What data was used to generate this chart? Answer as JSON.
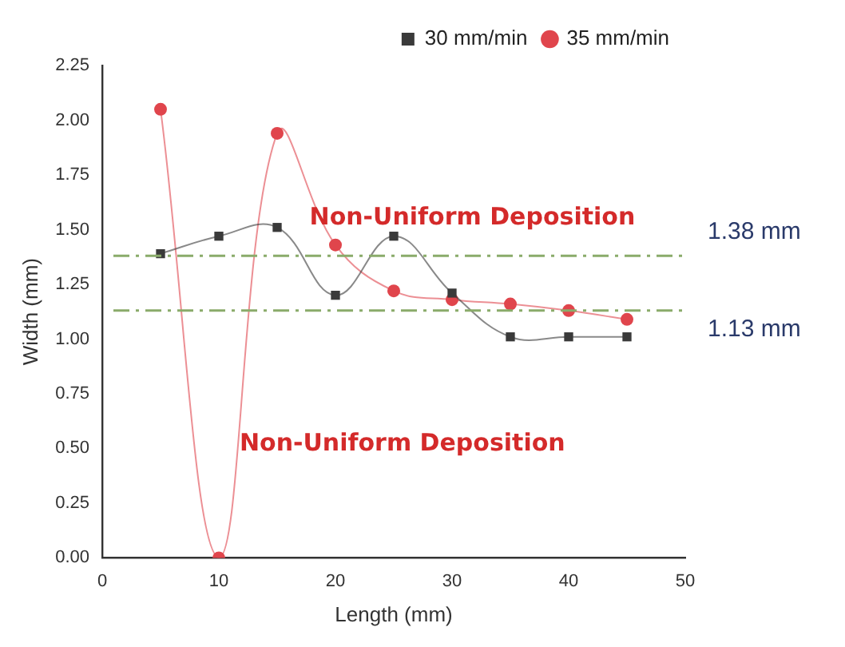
{
  "chart_data": {
    "type": "line",
    "xlabel": "Length (mm)",
    "ylabel": "Width (mm)",
    "x": [
      5,
      10,
      15,
      20,
      25,
      30,
      35,
      40,
      45
    ],
    "series": [
      {
        "name": "30 mm/min",
        "color": "#3a3a3a",
        "marker": "square",
        "values": [
          1.39,
          1.47,
          1.51,
          1.2,
          1.47,
          1.21,
          1.01,
          1.01,
          1.01
        ]
      },
      {
        "name": "35 mm/min",
        "color": "#e0454c",
        "marker": "circle",
        "values": [
          2.05,
          0,
          1.94,
          1.43,
          1.22,
          1.18,
          1.16,
          1.13,
          1.09
        ]
      }
    ],
    "xlim": [
      0,
      50
    ],
    "xticks": [
      0,
      10,
      20,
      30,
      40,
      50
    ],
    "ylim": [
      0,
      2.25
    ],
    "yticks": [
      {
        "value": 0,
        "label": "0.00"
      },
      {
        "value": 0.25,
        "label": "0.25"
      },
      {
        "value": 0.5,
        "label": "0.50"
      },
      {
        "value": 0.75,
        "label": "0.75"
      },
      {
        "value": 1,
        "label": "1.00"
      },
      {
        "value": 1.25,
        "label": "1.25"
      },
      {
        "value": 1.5,
        "label": "1.50"
      },
      {
        "value": 1.75,
        "label": "1.75"
      },
      {
        "value": 2,
        "label": "2.00"
      },
      {
        "value": 2.25,
        "label": "2.25"
      }
    ],
    "ref_lines": [
      {
        "axis": "y",
        "value": 1.38,
        "label": "1.38 mm",
        "color": "#8aab6a",
        "line_style": "dashed"
      },
      {
        "axis": "y",
        "value": 1.13,
        "label": "1.13 mm",
        "color": "#8aab6a",
        "line_style": "dashed"
      }
    ],
    "annotations": [
      "Non-Uniform Deposition",
      "Non-Uniform Deposition"
    ],
    "grid": false,
    "legend": "top right"
  }
}
